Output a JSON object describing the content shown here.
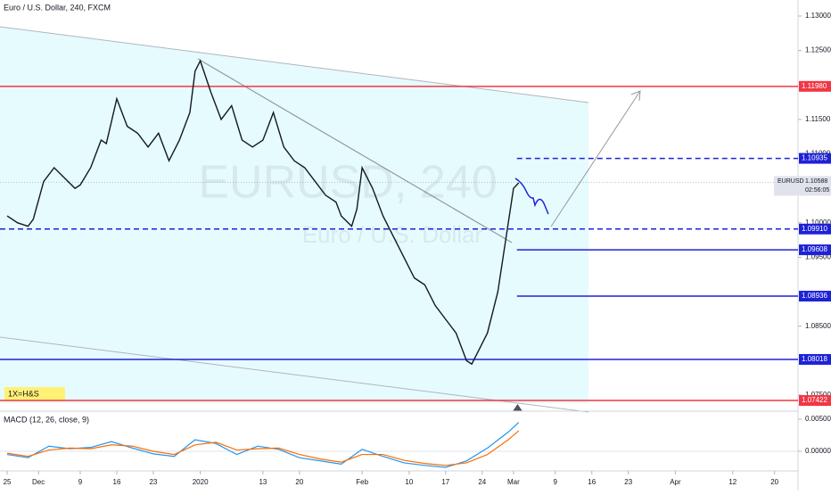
{
  "chart_data": [
    {
      "type": "line",
      "title": "Euro / U.S. Dollar, 240, FXCM",
      "watermark": "EURUSD, 240",
      "watermark_sub": "Euro / U.S. Dollar",
      "annotation": "1X=H&S",
      "x": [
        0,
        2,
        4,
        5,
        7,
        9,
        11,
        13,
        14,
        16,
        18,
        19,
        21,
        23,
        25,
        27,
        29,
        31,
        33,
        35,
        36,
        37,
        39,
        41,
        43,
        45,
        47,
        49,
        50,
        51,
        53,
        55,
        57,
        59,
        61,
        63,
        64,
        66,
        67,
        68,
        70,
        72,
        74,
        76,
        78,
        80,
        82,
        84,
        86,
        88,
        89,
        90,
        92,
        93,
        94,
        95,
        96,
        97,
        98
      ],
      "series": [
        {
          "name": "EURUSD",
          "color": "#131722",
          "values": [
            1.101,
            1.1,
            1.0995,
            1.1005,
            1.106,
            1.108,
            1.1065,
            1.105,
            1.1055,
            1.108,
            1.112,
            1.1115,
            1.118,
            1.114,
            1.113,
            1.111,
            1.113,
            1.109,
            1.112,
            1.116,
            1.122,
            1.1235,
            1.119,
            1.115,
            1.117,
            1.112,
            1.111,
            1.112,
            1.114,
            1.116,
            1.111,
            1.109,
            1.108,
            1.106,
            1.104,
            1.103,
            1.101,
            1.0995,
            1.102,
            1.108,
            1.105,
            1.101,
            1.098,
            1.095,
            1.092,
            1.091,
            1.088,
            1.086,
            1.084,
            1.08,
            1.0795,
            1.081,
            1.084,
            1.087,
            1.09,
            1.095,
            1.1,
            1.105,
            1.1058
          ]
        }
      ],
      "xlim": [
        -1.37,
        151.5
      ],
      "xticks": [
        {
          "value": 0,
          "label": "25"
        },
        {
          "value": 6,
          "label": "Dec"
        },
        {
          "value": 14,
          "label": "9"
        },
        {
          "value": 21,
          "label": "16"
        },
        {
          "value": 28,
          "label": "23"
        },
        {
          "value": 37,
          "label": "2020"
        },
        {
          "value": 49,
          "label": "13"
        },
        {
          "value": 56,
          "label": "20"
        },
        {
          "value": 68,
          "label": "Feb"
        },
        {
          "value": 77,
          "label": "10"
        },
        {
          "value": 84,
          "label": "17"
        },
        {
          "value": 91,
          "label": "24"
        },
        {
          "value": 97,
          "label": "Mar"
        },
        {
          "value": 105,
          "label": "9"
        },
        {
          "value": 112,
          "label": "16"
        },
        {
          "value": 119,
          "label": "23"
        },
        {
          "value": 128,
          "label": "Apr"
        },
        {
          "value": 139,
          "label": "12"
        },
        {
          "value": 147,
          "label": "20"
        }
      ],
      "ylim": [
        1.0728,
        1.13233
      ],
      "yticks": [
        {
          "value": 1.13,
          "label": "1.13000"
        },
        {
          "value": 1.125,
          "label": "1.12500"
        },
        {
          "value": 1.115,
          "label": "1.11500"
        },
        {
          "value": 1.11,
          "label": "1.11000"
        },
        {
          "value": 1.1,
          "label": "1.10000"
        },
        {
          "value": 1.095,
          "label": "1.09500"
        },
        {
          "value": 1.085,
          "label": "1.08500"
        },
        {
          "value": 1.075,
          "label": "1.07500"
        }
      ],
      "levels": [
        {
          "value": 1.1198,
          "label": "1.11980",
          "color": "#f23645",
          "dashed": false,
          "extend": "full"
        },
        {
          "value": 1.10935,
          "label": "1.10935",
          "color": "#1e22d6",
          "dashed": true,
          "extend": "partial"
        },
        {
          "value": 1.0991,
          "label": "1.09910",
          "color": "#1e22d6",
          "dashed": true,
          "extend": "full"
        },
        {
          "value": 1.09608,
          "label": "1.09608",
          "color": "#1e22d6",
          "dashed": false,
          "extend": "partial"
        },
        {
          "value": 1.08936,
          "label": "1.08936",
          "color": "#1e22d6",
          "dashed": false,
          "extend": "partial"
        },
        {
          "value": 1.08018,
          "label": "1.08018",
          "color": "#1e22d6",
          "dashed": false,
          "extend": "full"
        },
        {
          "value": 1.07422,
          "label": "1.07422",
          "color": "#f23645",
          "dashed": false,
          "extend": "full"
        }
      ],
      "current": {
        "symbol": "EURUSD",
        "value": 1.10588,
        "label": "1.10588",
        "countdown": "02:56:05"
      }
    },
    {
      "type": "line",
      "title": "MACD (12, 26, close, 9)",
      "x": [
        0,
        4,
        8,
        12,
        16,
        20,
        24,
        28,
        32,
        36,
        40,
        44,
        48,
        52,
        56,
        60,
        64,
        68,
        72,
        76,
        80,
        84,
        88,
        92,
        96,
        98
      ],
      "series": [
        {
          "name": "MACD",
          "color": "#2196f3",
          "values": [
            -0.0005,
            -0.001,
            0.0008,
            0.0004,
            0.0006,
            0.0015,
            0.0005,
            -0.0004,
            -0.0008,
            0.0018,
            0.0012,
            -0.0005,
            0.0008,
            0.0003,
            -0.001,
            -0.0015,
            -0.002,
            0.0003,
            -0.0008,
            -0.0018,
            -0.0022,
            -0.0025,
            -0.0015,
            0.0005,
            0.003,
            0.0045
          ]
        },
        {
          "name": "Signal",
          "color": "#ff6d00",
          "values": [
            -0.0003,
            -0.0008,
            0.0002,
            0.0005,
            0.0004,
            0.001,
            0.0008,
            0,
            -0.0005,
            0.001,
            0.0014,
            0.0002,
            0.0004,
            0.0005,
            -0.0005,
            -0.0012,
            -0.0017,
            -0.0005,
            -0.0005,
            -0.0014,
            -0.0019,
            -0.0022,
            -0.0018,
            -0.0005,
            0.0018,
            0.0032
          ]
        }
      ],
      "xlim": [
        -1.37,
        151.5
      ],
      "ylim": [
        -0.00306,
        0.00611
      ],
      "yticks": [
        {
          "value": 0.005,
          "label": "0.00500"
        },
        {
          "value": 0,
          "label": "0.00000"
        }
      ]
    }
  ]
}
